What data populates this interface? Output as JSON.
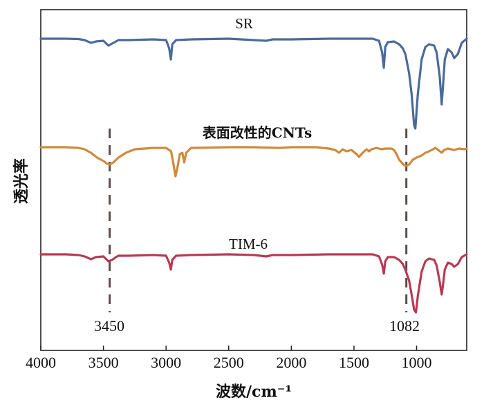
{
  "chart_data": {
    "type": "line",
    "title": "",
    "xlabel": "波数/cm⁻¹",
    "ylabel": "透光率",
    "xlim": [
      4000,
      600
    ],
    "x_reversed": true,
    "xticks": [
      4000,
      3500,
      3000,
      2500,
      2000,
      1500,
      1000
    ],
    "x_tick_labels": [
      "4000",
      "3500",
      "3000",
      "2500",
      "2000",
      "1500",
      "1000"
    ],
    "y_ticks_shown": false,
    "annotations": [
      {
        "label": "3450",
        "x": 3450,
        "style": "dashed-vertical"
      },
      {
        "label": "1082",
        "x": 1082,
        "style": "dashed-vertical"
      }
    ],
    "series": [
      {
        "name": "SR",
        "color": "#4a6a9a",
        "offset": 0,
        "points": [
          [
            4000,
            0
          ],
          [
            3800,
            0
          ],
          [
            3700,
            -0.5
          ],
          [
            3650,
            -2
          ],
          [
            3600,
            -6
          ],
          [
            3560,
            -4
          ],
          [
            3500,
            -3
          ],
          [
            3460,
            -10
          ],
          [
            3420,
            -6
          ],
          [
            3380,
            -2
          ],
          [
            3300,
            -2
          ],
          [
            3100,
            -1
          ],
          [
            3000,
            -2
          ],
          [
            2975,
            -14
          ],
          [
            2962,
            -30
          ],
          [
            2950,
            -8
          ],
          [
            2920,
            -2
          ],
          [
            2800,
            -1
          ],
          [
            2500,
            0
          ],
          [
            2300,
            -2
          ],
          [
            2200,
            -3
          ],
          [
            2150,
            -1
          ],
          [
            2000,
            -1
          ],
          [
            1700,
            0
          ],
          [
            1500,
            0
          ],
          [
            1350,
            0
          ],
          [
            1300,
            -3
          ],
          [
            1275,
            -20
          ],
          [
            1262,
            -42
          ],
          [
            1250,
            -12
          ],
          [
            1230,
            -5
          ],
          [
            1180,
            -4
          ],
          [
            1140,
            -8
          ],
          [
            1110,
            -14
          ],
          [
            1090,
            -22
          ],
          [
            1060,
            -50
          ],
          [
            1040,
            -80
          ],
          [
            1020,
            -125
          ],
          [
            1010,
            -130
          ],
          [
            990,
            -80
          ],
          [
            960,
            -30
          ],
          [
            930,
            -12
          ],
          [
            900,
            -8
          ],
          [
            860,
            -10
          ],
          [
            840,
            -20
          ],
          [
            815,
            -55
          ],
          [
            800,
            -95
          ],
          [
            790,
            -70
          ],
          [
            775,
            -30
          ],
          [
            750,
            -15
          ],
          [
            720,
            -20
          ],
          [
            700,
            -28
          ],
          [
            670,
            -22
          ],
          [
            640,
            -6
          ],
          [
            600,
            0
          ]
        ]
      },
      {
        "name": "表面改性的CNTs",
        "color": "#cf8a3a",
        "offset": 0,
        "points": [
          [
            4000,
            0
          ],
          [
            3800,
            0
          ],
          [
            3700,
            -1
          ],
          [
            3650,
            -3
          ],
          [
            3600,
            -8
          ],
          [
            3550,
            -15
          ],
          [
            3500,
            -20
          ],
          [
            3470,
            -24
          ],
          [
            3450,
            -25
          ],
          [
            3420,
            -22
          ],
          [
            3380,
            -15
          ],
          [
            3320,
            -8
          ],
          [
            3250,
            -3
          ],
          [
            3100,
            -1
          ],
          [
            3000,
            -1
          ],
          [
            2960,
            -6
          ],
          [
            2945,
            -20
          ],
          [
            2925,
            -42
          ],
          [
            2910,
            -30
          ],
          [
            2890,
            -10
          ],
          [
            2870,
            -8
          ],
          [
            2855,
            -22
          ],
          [
            2840,
            -8
          ],
          [
            2800,
            -1
          ],
          [
            2500,
            0
          ],
          [
            2300,
            0
          ],
          [
            2100,
            -1
          ],
          [
            2000,
            0
          ],
          [
            1800,
            0
          ],
          [
            1700,
            -2
          ],
          [
            1650,
            -4
          ],
          [
            1620,
            -8
          ],
          [
            1590,
            -3
          ],
          [
            1560,
            -6
          ],
          [
            1520,
            -4
          ],
          [
            1480,
            -10
          ],
          [
            1460,
            -14
          ],
          [
            1430,
            -8
          ],
          [
            1400,
            -3
          ],
          [
            1380,
            -6
          ],
          [
            1360,
            -3
          ],
          [
            1320,
            -1
          ],
          [
            1280,
            -3
          ],
          [
            1250,
            -2
          ],
          [
            1200,
            -2
          ],
          [
            1180,
            -4
          ],
          [
            1160,
            -10
          ],
          [
            1140,
            -18
          ],
          [
            1100,
            -26
          ],
          [
            1082,
            -27
          ],
          [
            1060,
            -25
          ],
          [
            1030,
            -18
          ],
          [
            1000,
            -15
          ],
          [
            960,
            -12
          ],
          [
            930,
            -8
          ],
          [
            900,
            -6
          ],
          [
            870,
            -3
          ],
          [
            850,
            -1
          ],
          [
            820,
            -5
          ],
          [
            800,
            -8
          ],
          [
            780,
            -4
          ],
          [
            750,
            -2
          ],
          [
            700,
            -4
          ],
          [
            660,
            -2
          ],
          [
            620,
            -3
          ],
          [
            600,
            -2
          ]
        ]
      },
      {
        "name": "TIM-6",
        "color": "#b73a52",
        "offset": 0,
        "points": [
          [
            4000,
            0
          ],
          [
            3800,
            0
          ],
          [
            3700,
            -1
          ],
          [
            3650,
            -3
          ],
          [
            3600,
            -7
          ],
          [
            3560,
            -4
          ],
          [
            3500,
            -3
          ],
          [
            3460,
            -10
          ],
          [
            3430,
            -8
          ],
          [
            3400,
            -4
          ],
          [
            3380,
            -2
          ],
          [
            3300,
            -2
          ],
          [
            3100,
            -1
          ],
          [
            3000,
            -2
          ],
          [
            2975,
            -12
          ],
          [
            2962,
            -22
          ],
          [
            2950,
            -8
          ],
          [
            2920,
            -2
          ],
          [
            2800,
            -1
          ],
          [
            2500,
            0
          ],
          [
            2300,
            -1
          ],
          [
            2200,
            -3
          ],
          [
            2150,
            -1
          ],
          [
            2000,
            -1
          ],
          [
            1700,
            0
          ],
          [
            1500,
            0
          ],
          [
            1350,
            0
          ],
          [
            1300,
            -3
          ],
          [
            1275,
            -15
          ],
          [
            1262,
            -28
          ],
          [
            1250,
            -10
          ],
          [
            1230,
            -4
          ],
          [
            1180,
            -4
          ],
          [
            1140,
            -8
          ],
          [
            1110,
            -14
          ],
          [
            1090,
            -22
          ],
          [
            1060,
            -38
          ],
          [
            1040,
            -58
          ],
          [
            1020,
            -80
          ],
          [
            1005,
            -84
          ],
          [
            990,
            -60
          ],
          [
            960,
            -25
          ],
          [
            930,
            -10
          ],
          [
            900,
            -6
          ],
          [
            860,
            -8
          ],
          [
            840,
            -16
          ],
          [
            815,
            -40
          ],
          [
            800,
            -58
          ],
          [
            790,
            -45
          ],
          [
            775,
            -22
          ],
          [
            750,
            -12
          ],
          [
            720,
            -14
          ],
          [
            700,
            -18
          ],
          [
            670,
            -14
          ],
          [
            640,
            -4
          ],
          [
            600,
            0
          ]
        ]
      }
    ]
  }
}
